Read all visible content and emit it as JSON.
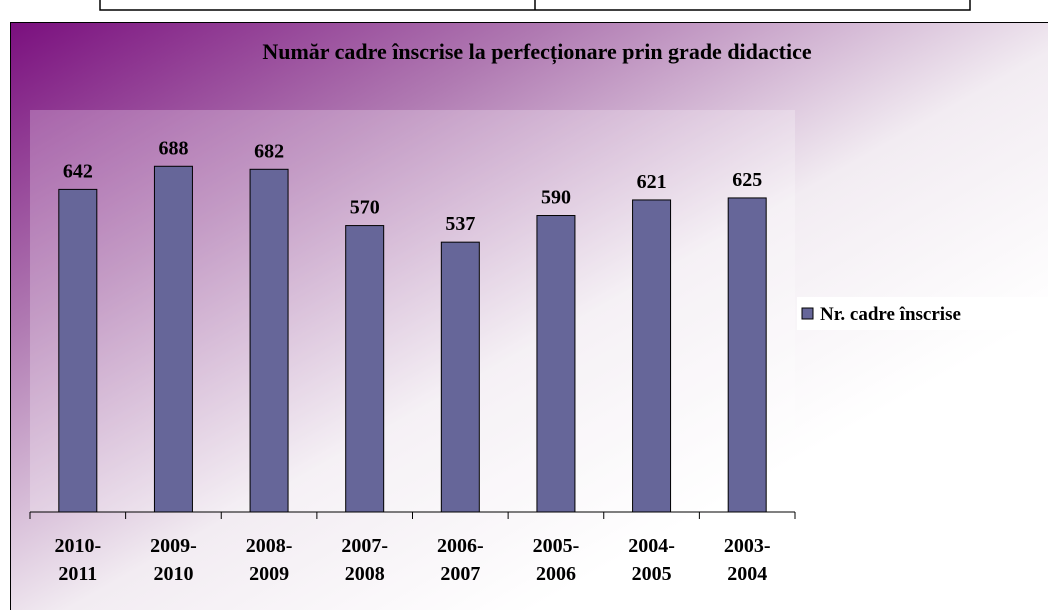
{
  "chart_data": {
    "type": "bar",
    "title": "Număr cadre înscrise la perfecționare prin grade didactice",
    "categories": [
      "2010-2011",
      "2009-2010",
      "2008-2009",
      "2007-2008",
      "2006-2007",
      "2005-2006",
      "2004-2005",
      "2003-2004"
    ],
    "series": [
      {
        "name": "Nr. cadre înscrise",
        "color": "#666699",
        "values": [
          642,
          688,
          682,
          570,
          537,
          590,
          621,
          625
        ]
      }
    ],
    "ylim": [
      0,
      800
    ],
    "legend": "right"
  }
}
